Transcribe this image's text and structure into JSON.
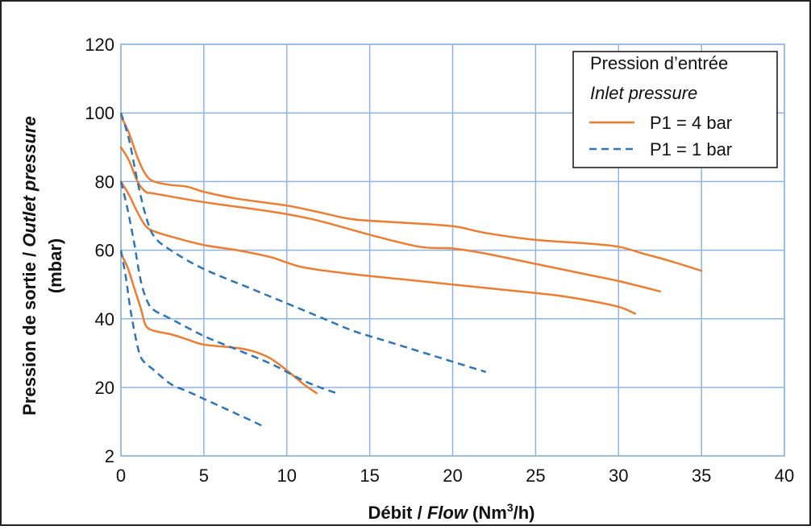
{
  "chart_data": {
    "type": "line",
    "xlabel": {
      "prefix": "Débit / ",
      "italic": "Flow",
      "suffix_pre": " (Nm",
      "sup": "3",
      "suffix_post": "/h)"
    },
    "ylabel": {
      "line1_prefix": "Pression de sortie / ",
      "line1_italic": "Outlet pressure",
      "line2": "(mbar)"
    },
    "x_ticks": [
      0,
      5,
      10,
      15,
      20,
      25,
      30,
      35,
      40
    ],
    "y_ticks": [
      2,
      20,
      40,
      60,
      80,
      100,
      120
    ],
    "xlim": [
      0,
      40
    ],
    "ylim": [
      2,
      120
    ],
    "grid": true,
    "legend": {
      "placement": "top-right",
      "title": "Pression d’entrée",
      "subtitle": "Inlet pressure",
      "entries": [
        {
          "label": "P1 = 4 bar",
          "color": "#ee7d31",
          "style": "solid"
        },
        {
          "label": "P1 = 1 bar",
          "color": "#2e75b6",
          "style": "dashed"
        }
      ]
    },
    "series": [
      {
        "group": "P1 = 4 bar",
        "color": "#ee7d31",
        "style": "solid",
        "points": [
          [
            0,
            99
          ],
          [
            0.5,
            94
          ],
          [
            1,
            87
          ],
          [
            1.5,
            82
          ],
          [
            2,
            80
          ],
          [
            3,
            79
          ],
          [
            4,
            78.5
          ],
          [
            5,
            77
          ],
          [
            7,
            75
          ],
          [
            10,
            73
          ],
          [
            12,
            71
          ],
          [
            14,
            69
          ],
          [
            17,
            68
          ],
          [
            20,
            67
          ],
          [
            22,
            65
          ],
          [
            25,
            63
          ],
          [
            28,
            62
          ],
          [
            30,
            61
          ],
          [
            31.5,
            59
          ],
          [
            33,
            57
          ],
          [
            35,
            54
          ]
        ]
      },
      {
        "group": "P1 = 4 bar",
        "color": "#ee7d31",
        "style": "solid",
        "points": [
          [
            0,
            90
          ],
          [
            0.5,
            86
          ],
          [
            1,
            80
          ],
          [
            1.5,
            77
          ],
          [
            2,
            76.5
          ],
          [
            5,
            74
          ],
          [
            8,
            72
          ],
          [
            10,
            70.5
          ],
          [
            12,
            68.5
          ],
          [
            15,
            64.5
          ],
          [
            18,
            61
          ],
          [
            20,
            60.5
          ],
          [
            22,
            59
          ],
          [
            25,
            56
          ],
          [
            28,
            53
          ],
          [
            30,
            51
          ],
          [
            32.5,
            48
          ]
        ]
      },
      {
        "group": "P1 = 4 bar",
        "color": "#ee7d31",
        "style": "solid",
        "points": [
          [
            0,
            80
          ],
          [
            0.5,
            76
          ],
          [
            1,
            71
          ],
          [
            1.5,
            67
          ],
          [
            2,
            65.5
          ],
          [
            3,
            64
          ],
          [
            5,
            61.5
          ],
          [
            7,
            60
          ],
          [
            9,
            58
          ],
          [
            11,
            55
          ],
          [
            14,
            53
          ],
          [
            17,
            51.5
          ],
          [
            20,
            50
          ],
          [
            23,
            48.5
          ],
          [
            26,
            47
          ],
          [
            28,
            45.5
          ],
          [
            30,
            43.5
          ],
          [
            31,
            41.5
          ]
        ]
      },
      {
        "group": "P1 = 4 bar",
        "color": "#ee7d31",
        "style": "solid",
        "points": [
          [
            0,
            59
          ],
          [
            0.4,
            55
          ],
          [
            0.8,
            49
          ],
          [
            1.2,
            43
          ],
          [
            1.5,
            38
          ],
          [
            2,
            36.5
          ],
          [
            3,
            35.5
          ],
          [
            4,
            34
          ],
          [
            5,
            32.5
          ],
          [
            7,
            31.5
          ],
          [
            8,
            30.5
          ],
          [
            9,
            28.5
          ],
          [
            10,
            25
          ],
          [
            11,
            21
          ],
          [
            11.8,
            18.5
          ]
        ]
      },
      {
        "group": "P1 = 1 bar",
        "color": "#2e75b6",
        "style": "dashed",
        "points": [
          [
            0,
            100
          ],
          [
            0.5,
            92
          ],
          [
            1,
            80
          ],
          [
            1.5,
            70
          ],
          [
            2,
            64
          ],
          [
            3,
            60
          ],
          [
            5,
            54.5
          ],
          [
            8,
            48.5
          ],
          [
            10,
            44.5
          ],
          [
            12,
            40.5
          ],
          [
            14,
            36.5
          ],
          [
            16,
            33.5
          ],
          [
            18,
            30.5
          ],
          [
            20,
            27.5
          ],
          [
            22,
            24.5
          ]
        ]
      },
      {
        "group": "P1 = 1 bar",
        "color": "#2e75b6",
        "style": "dashed",
        "points": [
          [
            0,
            80
          ],
          [
            0.4,
            72
          ],
          [
            0.8,
            62
          ],
          [
            1.2,
            51
          ],
          [
            1.6,
            45
          ],
          [
            2,
            42.5
          ],
          [
            3,
            40
          ],
          [
            5,
            35
          ],
          [
            7,
            31
          ],
          [
            9,
            27
          ],
          [
            10,
            24.5
          ],
          [
            11,
            22
          ],
          [
            12,
            20
          ],
          [
            13,
            18.5
          ]
        ]
      },
      {
        "group": "P1 = 1 bar",
        "color": "#2e75b6",
        "style": "dashed",
        "points": [
          [
            0,
            60
          ],
          [
            0.3,
            52
          ],
          [
            0.6,
            42
          ],
          [
            1,
            32
          ],
          [
            1.3,
            28
          ],
          [
            2,
            25
          ],
          [
            3,
            21
          ],
          [
            4,
            19
          ],
          [
            5,
            17
          ],
          [
            6,
            15
          ],
          [
            7,
            13
          ],
          [
            8,
            11
          ],
          [
            8.7,
            9.5
          ]
        ]
      }
    ]
  }
}
